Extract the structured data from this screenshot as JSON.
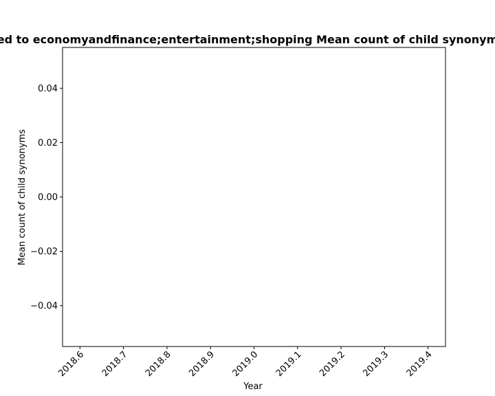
{
  "chart_data": {
    "type": "line",
    "title": "ed to economyandfinance;entertainment;shopping Mean count of child synonym",
    "xlabel": "Year",
    "ylabel": "Mean count of child synonyms",
    "xlim": [
      2018.56,
      2019.44
    ],
    "ylim": [
      -0.055,
      0.055
    ],
    "xticks": [
      2018.6,
      2018.7,
      2018.8,
      2018.9,
      2019.0,
      2019.1,
      2019.2,
      2019.3,
      2019.4
    ],
    "xtick_labels": [
      "2018.6",
      "2018.7",
      "2018.8",
      "2018.9",
      "2019.0",
      "2019.1",
      "2019.2",
      "2019.3",
      "2019.4"
    ],
    "yticks": [
      -0.04,
      -0.02,
      0.0,
      0.02,
      0.04
    ],
    "ytick_labels": [
      "−0.04",
      "−0.02",
      "0.00",
      "0.02",
      "0.04"
    ],
    "grid": false,
    "series": []
  }
}
